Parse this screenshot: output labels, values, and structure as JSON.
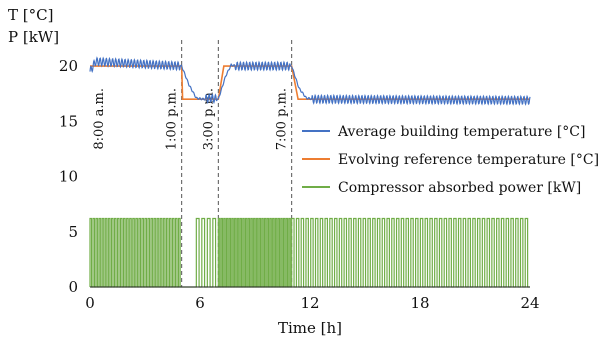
{
  "chart_data": {
    "type": "line",
    "ytitle_lines": [
      "T [°C]",
      "P [kW]"
    ],
    "xlabel": "Time [h]",
    "xlim": [
      0,
      24
    ],
    "ylim": [
      0,
      22
    ],
    "xticks": [
      "0",
      "6",
      "12",
      "18",
      "24"
    ],
    "yticks": [
      "0",
      "5",
      "10",
      "15",
      "20"
    ],
    "legend_position": "right",
    "events": [
      {
        "t": 0,
        "label": "8:00 a.m.",
        "line": false
      },
      {
        "t": 5,
        "label": "1:00 p.m.",
        "line": true
      },
      {
        "t": 7,
        "label": "3:00 p.m.",
        "line": true
      },
      {
        "t": 11,
        "label": "7:00 p.m.",
        "line": true
      }
    ],
    "series": [
      {
        "name": "Average building temperature [°C]",
        "color": "#4472C4",
        "pattern": "oscillation around reference, ~0.35 °C amplitude",
        "x": [
          0,
          0.3,
          5,
          5.4,
          5.8,
          6.2,
          6.6,
          7,
          7.4,
          7.7,
          8,
          11,
          11.4,
          11.8,
          12.2,
          24
        ],
        "y": [
          19.5,
          20.4,
          20,
          18.3,
          17.1,
          17.0,
          17.1,
          17.0,
          19.1,
          20.1,
          20,
          20,
          18.0,
          17.1,
          17.0,
          16.9
        ]
      },
      {
        "name": "Evolving reference temperature [°C]",
        "color": "#ED7D31",
        "x": [
          0,
          5,
          5.05,
          7,
          7.3,
          11,
          11.35,
          24
        ],
        "y": [
          20,
          20,
          17,
          17,
          20,
          20,
          17,
          17
        ]
      },
      {
        "name": "Compressor absorbed power [kW]",
        "color": "#70AD47",
        "on_level": 6.2,
        "off_level": 0,
        "pulses": [
          {
            "from": 0,
            "to": 5,
            "count": 30
          },
          {
            "from": 5.8,
            "to": 7,
            "count": 4
          },
          {
            "from": 7,
            "to": 11,
            "count": 27
          },
          {
            "from": 11,
            "to": 24,
            "count": 50
          }
        ]
      }
    ]
  }
}
